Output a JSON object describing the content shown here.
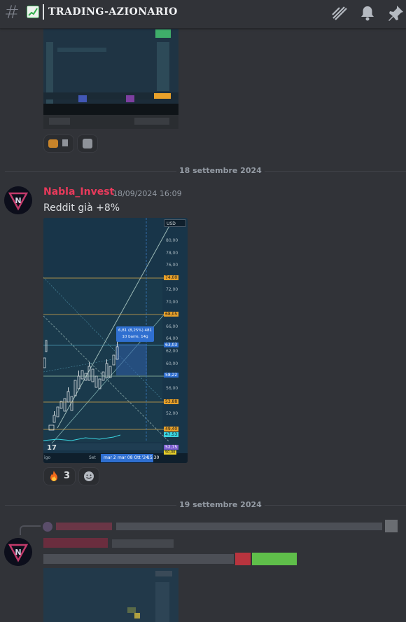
{
  "header": {
    "channel_name": "TRADING-AZIONARIO",
    "icons": [
      "hash-icon",
      "chart-emoji-icon",
      "threads-icon",
      "bell-icon",
      "pin-icon"
    ]
  },
  "dividers": {
    "first": "18 settembre 2024",
    "second": "19 settembre 2024"
  },
  "message": {
    "author": "Nabla_Invest",
    "timestamp": "18/09/2024 16:09",
    "text": "Reddit già +8%",
    "reactions": [
      {
        "emoji": "fire",
        "count": "3"
      },
      {
        "emoji": "add-reaction",
        "count": ""
      }
    ]
  },
  "chart_preview": {
    "currency": "USD",
    "price_labels": [
      "80,00",
      "78,00",
      "76,00",
      "74,00",
      "72,00",
      "70,00",
      "68,05",
      "66,00",
      "64,00",
      "63,03",
      "62,00",
      "60,00",
      "58,22",
      "56,00",
      "53,88",
      "52,00",
      "49,40",
      "47,53",
      "52,75",
      "50,00"
    ],
    "tooltip_line1": "6,81 (8,25%) 481",
    "tooltip_line2": "10 barre, 14g",
    "x_labels": [
      "igo",
      "Set",
      "mar 2",
      "mar 08 Ott '24",
      "15:30"
    ]
  }
}
